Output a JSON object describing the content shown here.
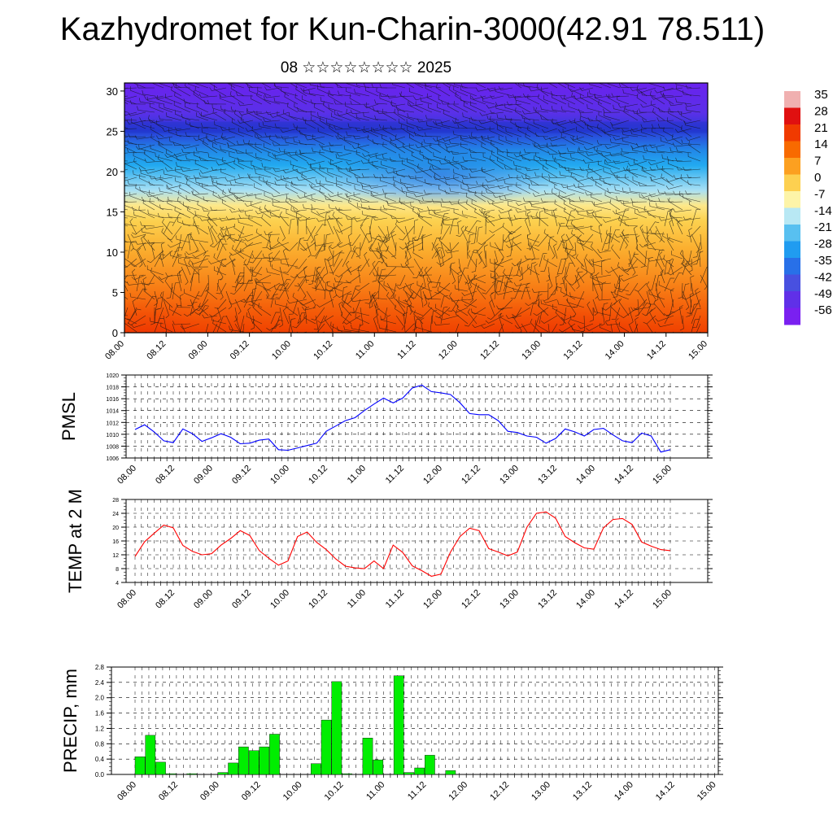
{
  "title": "Kazhydromet for Kun-Charin-3000(42.91 78.511)",
  "subtitle": "08 ☆☆☆☆☆☆☆☆ 2025",
  "colorbar": {
    "labels": [
      "35",
      "28",
      "21",
      "14",
      "7",
      "0",
      "-7",
      "-14",
      "-21",
      "-28",
      "-35",
      "-42",
      "-49",
      "-56"
    ],
    "colors": [
      "#f0b0b0",
      "#e01010",
      "#f03a00",
      "#f86a00",
      "#fca020",
      "#fdd050",
      "#fdf4a8",
      "#b8e8f4",
      "#58c0f0",
      "#209cf0",
      "#2870e8",
      "#4850e0",
      "#6030e8",
      "#7a20f0"
    ]
  },
  "chart_data": [
    {
      "type": "heatmap",
      "title": "Kazhydromet for Kun-Charin-3000(42.91 78.511)",
      "subtitle": "08 ☆☆☆☆☆☆☆☆ 2025",
      "x_tick_labels": [
        "08.00",
        "08.12",
        "09.00",
        "09.12",
        "10.00",
        "10.12",
        "11.00",
        "11.12",
        "12.00",
        "12.12",
        "13.00",
        "13.12",
        "14.00",
        "14.12",
        "15.00"
      ],
      "y_ticks": [
        0,
        5,
        10,
        15,
        20,
        25,
        30
      ],
      "ylim": [
        0,
        31
      ],
      "colorbar_range": [
        -56,
        35
      ],
      "overlay": "wind barbs"
    },
    {
      "type": "line",
      "ylabel": "PMSL",
      "color": "#0000ff",
      "ylim": [
        1006,
        1020
      ],
      "y_ticks": [
        1006,
        1008,
        1010,
        1012,
        1014,
        1016,
        1018,
        1020
      ],
      "x_tick_labels": [
        "08.00",
        "08.12",
        "09.00",
        "09.12",
        "10.00",
        "10.12",
        "11.00",
        "11.12",
        "12.00",
        "12.12",
        "13.00",
        "13.12",
        "14.00",
        "14.12",
        "15.00"
      ],
      "values": [
        1010.8,
        1011.6,
        1010.4,
        1008.9,
        1008.6,
        1010.9,
        1010.1,
        1008.8,
        1009.4,
        1010.1,
        1009.5,
        1008.4,
        1008.5,
        1009.0,
        1009.2,
        1007.4,
        1007.3,
        1007.7,
        1008.1,
        1008.5,
        1010.5,
        1011.4,
        1012.3,
        1012.8,
        1014.0,
        1015.1,
        1016.1,
        1015.3,
        1016.1,
        1017.8,
        1018.3,
        1017.2,
        1017.0,
        1016.7,
        1015.3,
        1013.5,
        1013.3,
        1013.3,
        1012.3,
        1010.5,
        1010.3,
        1009.7,
        1009.5,
        1008.5,
        1009.3,
        1010.9,
        1010.4,
        1009.7,
        1010.8,
        1011.0,
        1009.9,
        1008.9,
        1008.6,
        1010.2,
        1009.7,
        1007.0,
        1007.4
      ]
    },
    {
      "type": "line",
      "ylabel": "TEMP at 2 M",
      "color": "#ff0000",
      "ylim": [
        4,
        28
      ],
      "y_ticks": [
        4,
        8,
        12,
        16,
        20,
        24,
        28
      ],
      "x_tick_labels": [
        "08.00",
        "08.12",
        "09.00",
        "09.12",
        "10.00",
        "10.12",
        "11.00",
        "11.12",
        "12.00",
        "12.12",
        "13.00",
        "13.12",
        "14.00",
        "14.12",
        "15.00"
      ],
      "values": [
        11.5,
        15.8,
        18.2,
        20.6,
        19.8,
        14.7,
        13.0,
        12.0,
        12.3,
        14.8,
        16.7,
        19.0,
        17.6,
        13.2,
        11.0,
        9.0,
        10.2,
        17.3,
        18.6,
        15.6,
        13.5,
        10.8,
        8.7,
        8.2,
        8.0,
        10.2,
        8.0,
        14.8,
        12.7,
        8.8,
        7.4,
        5.8,
        6.4,
        12.8,
        17.3,
        19.7,
        19.0,
        13.8,
        12.8,
        11.7,
        12.8,
        20.0,
        24.0,
        24.4,
        22.6,
        17.3,
        15.5,
        14.0,
        13.6,
        19.8,
        22.2,
        22.5,
        20.8,
        15.7,
        14.5,
        13.5,
        13.2
      ]
    },
    {
      "type": "bar",
      "ylabel": "PRECIP, mm",
      "color": "#00ee00",
      "ylim": [
        0,
        2.8
      ],
      "y_ticks": [
        "0.0",
        "0.4",
        "0.8",
        "1.2",
        "1.6",
        "2.0",
        "2.4",
        "2.8"
      ],
      "x_tick_labels": [
        "08.00",
        "08.12",
        "09.00",
        "09.12",
        "10.00",
        "10.12",
        "11.00",
        "11.12",
        "12.00",
        "12.12",
        "13.00",
        "13.12",
        "14.00",
        "14.12",
        "15.00"
      ],
      "values": [
        0.46,
        1.02,
        0.32,
        0.02,
        0,
        0.02,
        0,
        0,
        0.05,
        0.3,
        0.72,
        0.62,
        0.72,
        1.05,
        0,
        0,
        0,
        0.28,
        1.42,
        2.42,
        0.02,
        0,
        0.95,
        0.38,
        0,
        2.57,
        0.05,
        0.17,
        0.5,
        0,
        0.1,
        0,
        0,
        0,
        0,
        0,
        0,
        0,
        0,
        0,
        0,
        0,
        0,
        0,
        0,
        0,
        0,
        0,
        0,
        0,
        0,
        0,
        0,
        0,
        0,
        0
      ]
    }
  ]
}
